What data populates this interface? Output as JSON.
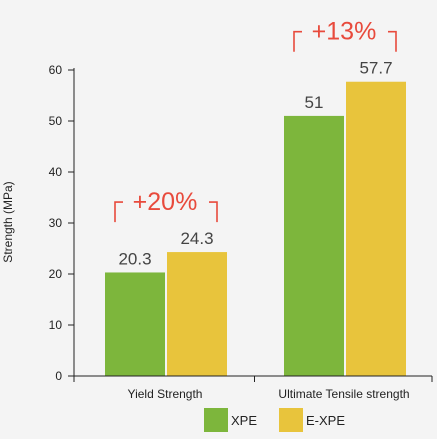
{
  "chart_data": {
    "type": "bar",
    "categories": [
      "Yield Strength",
      "Ultimate Tensile strength"
    ],
    "series": [
      {
        "name": "XPE",
        "values": [
          20.3,
          51
        ],
        "color": "#7db63c"
      },
      {
        "name": "E-XPE",
        "values": [
          24.3,
          57.7
        ],
        "color": "#e8c43c"
      }
    ],
    "value_labels": [
      [
        "20.3",
        "51"
      ],
      [
        "24.3",
        "57.7"
      ]
    ],
    "ylabel": "Strength (MPa)",
    "xlabel": "",
    "ylim": [
      0,
      60
    ],
    "yticks": [
      0,
      10,
      20,
      30,
      40,
      50,
      60
    ],
    "grid": false,
    "legend": "bottom",
    "annotations": [
      {
        "category": "Yield Strength",
        "text": "+20%"
      },
      {
        "category": "Ultimate Tensile strength",
        "text": "+13%"
      }
    ],
    "annotation_color": "#e84a3c",
    "axis_color": "#222222"
  }
}
